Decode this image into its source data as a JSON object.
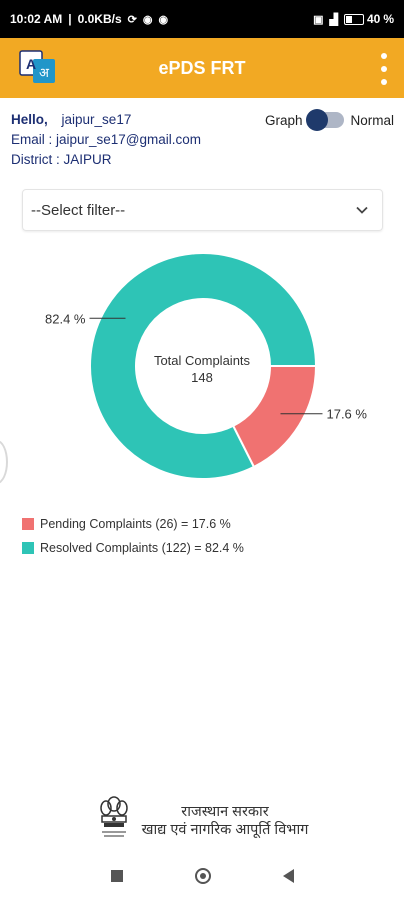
{
  "status_bar": {
    "time": "10:02 AM",
    "network_speed": "0.0KB/s",
    "battery": "40",
    "battery_fraction": 0.4
  },
  "app_bar": {
    "title": "ePDS FRT",
    "translate_icon": "translate-icon",
    "menu_icon": "more-vert-icon"
  },
  "user": {
    "greeting": "Hello,",
    "username": "jaipur_se17",
    "email": "Email : jaipur_se17@gmail.com",
    "district": "District : JAIPUR"
  },
  "view_toggle": {
    "left_label": "Graph",
    "right_label": "Normal"
  },
  "filter": {
    "selected": "--Select filter--"
  },
  "colors": {
    "accent": "#f2a923",
    "pending": "#f07271",
    "resolved": "#2ec4b6",
    "navy": "#1d2f73"
  },
  "chart_data": {
    "type": "pie",
    "variant": "donut",
    "center_title": "Total Complaints",
    "center_value": "148",
    "slices": [
      {
        "label": "Pending Complaints",
        "count": 26,
        "percent": 17.6,
        "color": "#f07271",
        "label_text": "17.6 %"
      },
      {
        "label": "Resolved Complaints",
        "count": 122,
        "percent": 82.4,
        "color": "#2ec4b6",
        "label_text": "82.4 %"
      }
    ],
    "legend": [
      "Pending Complaints (26) = 17.6 %",
      "Resolved Complaints (122) = 82.4 %"
    ]
  },
  "footer": {
    "line1": "राजस्थान सरकार",
    "line2": "खाद्य एवं नागरिक आपूर्ति विभाग"
  }
}
